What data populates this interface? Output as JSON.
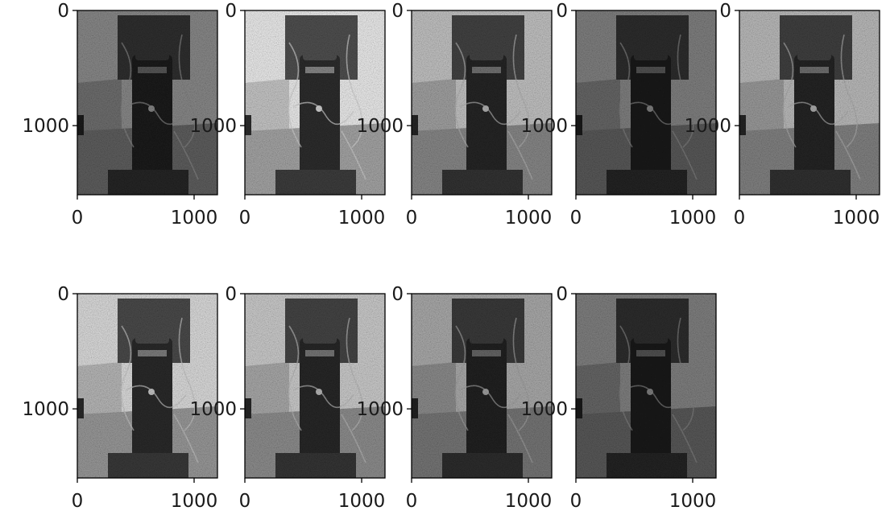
{
  "chart_data": {
    "type": "image-grid",
    "layout": {
      "rows": 2,
      "cols": 5,
      "panels_shown": 9
    },
    "shared_axes": {
      "x_ticks": [
        0,
        1000
      ],
      "y_ticks": [
        0,
        1000
      ],
      "xlim": [
        0,
        1200
      ],
      "ylim": [
        1600,
        0
      ],
      "grid": false
    },
    "panels": [
      {
        "index": 1,
        "brightness": 0.35,
        "x_tick_labels": [
          "0",
          "1000"
        ],
        "y_tick_labels": [
          "0",
          "1000"
        ]
      },
      {
        "index": 2,
        "brightness": 0.95,
        "x_tick_labels": [
          "0",
          "1000"
        ],
        "y_tick_labels": [
          "0",
          "1000"
        ]
      },
      {
        "index": 3,
        "brightness": 0.7,
        "x_tick_labels": [
          "0",
          "1000"
        ],
        "y_tick_labels": [
          "0",
          "1000"
        ]
      },
      {
        "index": 4,
        "brightness": 0.3,
        "x_tick_labels": [
          "0",
          "1000"
        ],
        "y_tick_labels": [
          "0",
          "1000"
        ]
      },
      {
        "index": 5,
        "brightness": 0.65,
        "x_tick_labels": [
          "0",
          "1000"
        ],
        "y_tick_labels": [
          "0",
          "1000"
        ]
      },
      {
        "index": 6,
        "brightness": 0.85,
        "x_tick_labels": [
          "0",
          "1000"
        ],
        "y_tick_labels": [
          "0",
          "1000"
        ]
      },
      {
        "index": 7,
        "brightness": 0.75,
        "x_tick_labels": [
          "0",
          "1000"
        ],
        "y_tick_labels": [
          "0",
          "1000"
        ]
      },
      {
        "index": 8,
        "brightness": 0.55,
        "x_tick_labels": [
          "0",
          "1000"
        ],
        "y_tick_labels": [
          "0",
          "1000"
        ]
      },
      {
        "index": 9,
        "brightness": 0.3,
        "x_tick_labels": [
          "0",
          "1000"
        ],
        "y_tick_labels": [
          "0",
          "1000"
        ]
      }
    ]
  }
}
